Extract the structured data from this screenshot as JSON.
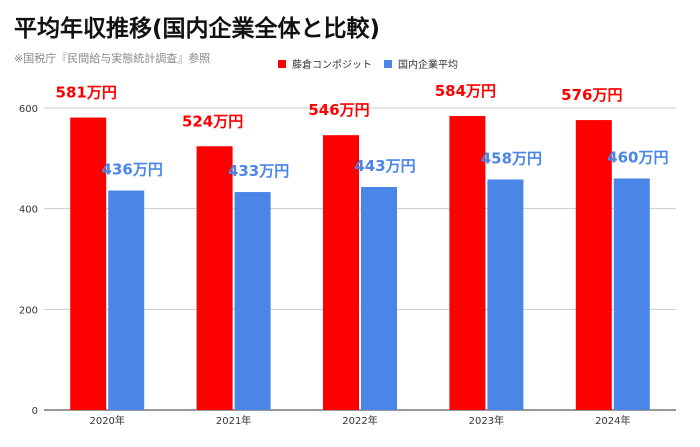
{
  "colors": {
    "series1": "#ff0000",
    "series2": "#4a86e8",
    "grid": "#cccccc",
    "axis": "#333333"
  },
  "chart_data": {
    "type": "bar",
    "title": "平均年収推移(国内企業全体と比較)",
    "subtitle": "※国税庁『民間給与実態統計調査』参照",
    "categories": [
      "2020年",
      "2021年",
      "2022年",
      "2023年",
      "2024年"
    ],
    "series": [
      {
        "name": "藤倉コンポジット",
        "color": "#ff0000",
        "values": [
          581,
          524,
          546,
          584,
          576
        ],
        "labels": [
          "581万円",
          "524万円",
          "546万円",
          "584万円",
          "576万円"
        ]
      },
      {
        "name": "国内企業平均",
        "color": "#4a86e8",
        "values": [
          436,
          433,
          443,
          458,
          460
        ],
        "labels": [
          "436万円",
          "433万円",
          "443万円",
          "458万円",
          "460万円"
        ]
      }
    ],
    "yticks": [
      "0",
      "200",
      "400",
      "600"
    ],
    "ylim": [
      0,
      600
    ],
    "grid": true,
    "legend": "top-right"
  }
}
